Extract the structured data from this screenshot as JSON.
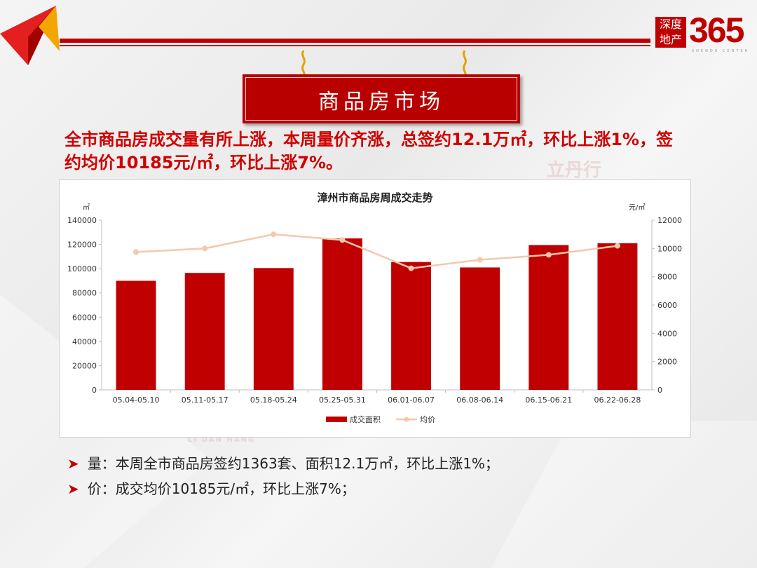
{
  "logo": {
    "box_line1": "深度",
    "box_line2": "地产",
    "number": "365",
    "sub": "SHENDU CENTER"
  },
  "banner": {
    "title": "商品房市场"
  },
  "headline": "全市商品房成交量有所上涨，本周量价齐涨，总签约12.1万㎡，环比上涨1%，签约均价10185元/㎡，环比上涨7%。",
  "watermark": {
    "text": "立丹行",
    "sub": "LI DAN HANG"
  },
  "bullets": [
    "量：本周全市商品房签约1363套、面积12.1万㎡，环比上涨1%；",
    "价：成交均价10185元/㎡，环比上涨7%；"
  ],
  "colors": {
    "accent": "#c00000",
    "line": "#f2c9ad"
  },
  "chart_data": {
    "type": "bar",
    "title": "漳州市商品房周成交走势",
    "categories": [
      "05.04-05.10",
      "05.11-05.17",
      "05.18-05.24",
      "05.25-05.31",
      "06.01-06.07",
      "06.08-06.14",
      "06.15-06.21",
      "06.22-06.28"
    ],
    "series": [
      {
        "name": "成交面积",
        "type": "bar",
        "axis": "left",
        "values": [
          90000,
          96500,
          100500,
          125000,
          105500,
          101000,
          119500,
          121000
        ]
      },
      {
        "name": "均价",
        "type": "line",
        "axis": "right",
        "values": [
          9750,
          10000,
          11000,
          10600,
          8600,
          9200,
          9550,
          10185
        ]
      }
    ],
    "y_left": {
      "unit": "㎡",
      "ylim": [
        0,
        140000
      ],
      "ticks": [
        "0",
        "20000",
        "40000",
        "60000",
        "80000",
        "100000",
        "120000",
        "140000"
      ]
    },
    "y_right": {
      "unit": "元/㎡",
      "ylim": [
        0,
        12000
      ],
      "ticks": [
        "0",
        "2000",
        "4000",
        "6000",
        "8000",
        "10000",
        "12000"
      ]
    },
    "legend": "bottom",
    "grid": false
  }
}
